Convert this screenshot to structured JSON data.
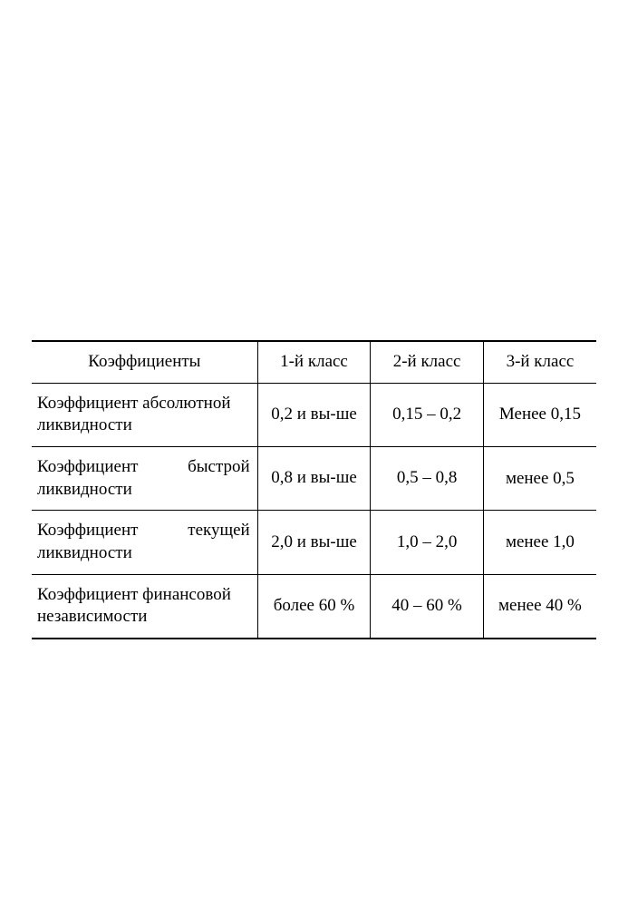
{
  "table": {
    "type": "table",
    "background_color": "#ffffff",
    "text_color": "#000000",
    "border_color": "#000000",
    "font_family": "Times New Roman",
    "font_size": 19,
    "columns": [
      {
        "label": "Коэффициенты",
        "width_pct": 36,
        "align": "center"
      },
      {
        "label": "1-й класс",
        "width_pct": 18,
        "align": "center"
      },
      {
        "label": "2-й класс",
        "width_pct": 18,
        "align": "center"
      },
      {
        "label": "3-й класс",
        "width_pct": 18,
        "align": "center"
      }
    ],
    "rows": [
      {
        "coef_line1": "Коэффициент абсолютной",
        "coef_line2": "ликвидности",
        "class1": "0,2 и вы-ше",
        "class2": "0,15 – 0,2",
        "class3": "Менее 0,15",
        "justified": false
      },
      {
        "coef_line1_a": "Коэффициент",
        "coef_line1_b": "быстрой",
        "coef_line2": "ликвидности",
        "class1": "0,8 и вы-ше",
        "class2": "0,5 – 0,8",
        "class3": "менее 0,5",
        "justified": true
      },
      {
        "coef_line1_a": "Коэффициент",
        "coef_line1_b": "текущей",
        "coef_line2": "ликвидности",
        "class1": "2,0 и вы-ше",
        "class2": "1,0 – 2,0",
        "class3": "менее 1,0",
        "justified": true
      },
      {
        "coef_line1": "Коэффициент финансовой",
        "coef_line2": "независимости",
        "class1": "более 60 %",
        "class2": "40 – 60 %",
        "class3": "менее 40 %",
        "justified": false
      }
    ]
  }
}
